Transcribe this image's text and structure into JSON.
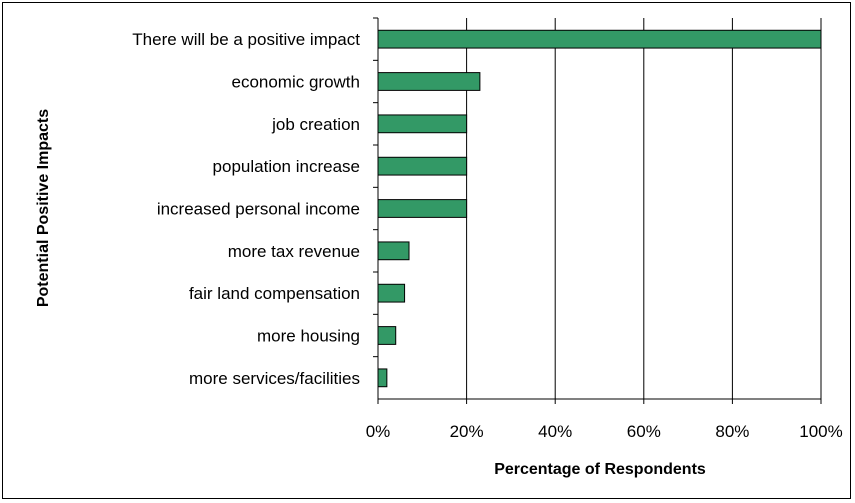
{
  "chart_data": {
    "type": "bar",
    "orientation": "horizontal",
    "title": "",
    "xlabel": "Percentage of Respondents",
    "ylabel": "Potential Positive Impacts",
    "categories": [
      "There will be a positive impact",
      "economic growth",
      "job creation",
      "population increase",
      "increased personal income",
      "more tax revenue",
      "fair land compensation",
      "more housing",
      "more services/facilities"
    ],
    "values": [
      100,
      23,
      20,
      20,
      20,
      7,
      6,
      4,
      2
    ],
    "xlim": [
      0,
      100
    ],
    "xticks": [
      "0%",
      "20%",
      "40%",
      "60%",
      "80%",
      "100%"
    ],
    "xtick_values": [
      0,
      20,
      40,
      60,
      80,
      100
    ],
    "grid": "vertical",
    "legend": "none",
    "bar_color": "#339966"
  }
}
